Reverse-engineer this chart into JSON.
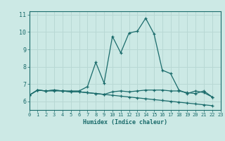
{
  "title": "",
  "xlabel": "Humidex (Indice chaleur)",
  "xlim": [
    0,
    23
  ],
  "ylim": [
    5.5,
    11.2
  ],
  "yticks": [
    6,
    7,
    8,
    9,
    10,
    11
  ],
  "xticks": [
    0,
    1,
    2,
    3,
    4,
    5,
    6,
    7,
    8,
    9,
    10,
    11,
    12,
    13,
    14,
    15,
    16,
    17,
    18,
    19,
    20,
    21,
    22,
    23
  ],
  "bg_color": "#cce9e5",
  "grid_color": "#b8d8d4",
  "line_color": "#1a6b6b",
  "series": [
    [
      6.35,
      6.65,
      6.6,
      6.6,
      6.6,
      6.6,
      6.6,
      6.85,
      8.25,
      7.05,
      9.75,
      8.8,
      9.95,
      10.05,
      10.8,
      9.9,
      7.8,
      7.6,
      6.65,
      6.45,
      6.6,
      6.5,
      6.25
    ],
    [
      6.35,
      6.65,
      6.6,
      6.65,
      6.6,
      6.55,
      6.55,
      6.5,
      6.45,
      6.4,
      6.35,
      6.3,
      6.25,
      6.2,
      6.15,
      6.1,
      6.05,
      6.0,
      5.95,
      5.9,
      5.85,
      5.8,
      5.75
    ],
    [
      6.35,
      6.65,
      6.6,
      6.65,
      6.6,
      6.55,
      6.55,
      6.5,
      6.45,
      6.4,
      6.55,
      6.6,
      6.55,
      6.6,
      6.65,
      6.65,
      6.65,
      6.6,
      6.6,
      6.5,
      6.45,
      6.6,
      6.25
    ]
  ],
  "x_values": [
    0,
    1,
    2,
    3,
    4,
    5,
    6,
    7,
    8,
    9,
    10,
    11,
    12,
    13,
    14,
    15,
    16,
    17,
    18,
    19,
    20,
    21,
    22
  ]
}
